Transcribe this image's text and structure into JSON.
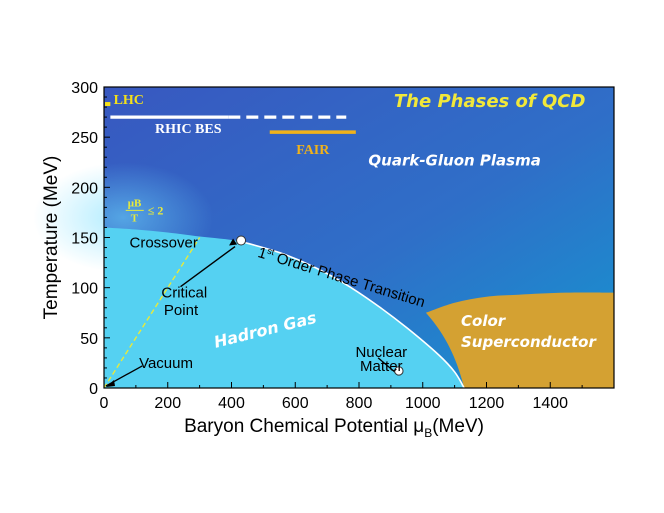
{
  "chart_data": {
    "type": "area",
    "title": "The Phases of QCD",
    "xlabel": "Baryon Chemical Potential μ",
    "xlabel_sub": "B",
    "xlabel_unit": "(MeV)",
    "ylabel": "Temperature (MeV)",
    "xlim": [
      0,
      1600
    ],
    "ylim": [
      0,
      300
    ],
    "x_ticks": [
      0,
      200,
      400,
      600,
      800,
      1000,
      1200,
      1400
    ],
    "y_ticks": [
      0,
      50,
      100,
      150,
      200,
      250,
      300
    ],
    "regions": {
      "qgp": "Quark-Gluon Plasma",
      "hadron": "Hadron Gas",
      "color_line1": "Color",
      "color_line2": "Superconductor"
    },
    "phase_boundary": {
      "label_sup": "st",
      "label_pre": "1",
      "label_post": " Order Phase Transition",
      "points": [
        [
          0,
          160
        ],
        [
          100,
          158
        ],
        [
          200,
          155
        ],
        [
          300,
          151
        ],
        [
          430,
          146
        ],
        [
          550,
          135
        ],
        [
          650,
          122
        ],
        [
          750,
          105
        ],
        [
          850,
          84
        ],
        [
          950,
          60
        ],
        [
          1050,
          33
        ],
        [
          1100,
          16
        ],
        [
          1130,
          0
        ]
      ]
    },
    "color_superconductor_boundary": [
      [
        1010,
        75
      ],
      [
        1100,
        85
      ],
      [
        1200,
        91
      ],
      [
        1300,
        93
      ],
      [
        1450,
        95
      ],
      [
        1600,
        95
      ]
    ],
    "crossover_line": {
      "label_num": "μB",
      "label_den": "T",
      "label_op": "≤ 2",
      "points": [
        [
          0,
          0
        ],
        [
          300,
          150
        ]
      ]
    },
    "annotations": {
      "crossover": "Crossover",
      "critical_line1": "Critical",
      "critical_line2": "Point",
      "critical_point": [
        430,
        147
      ],
      "vacuum": "Vacuum",
      "nuclear_line1": "Nuclear",
      "nuclear_line2": "Matter",
      "nuclear_matter": [
        925,
        17
      ]
    },
    "experiments": [
      {
        "name": "LHC",
        "mu_range": [
          0,
          20
        ],
        "T": 285,
        "color": "#f5e11a"
      },
      {
        "name": "RHIC BES",
        "mu_range": [
          20,
          760
        ],
        "solid_until": 390,
        "T": 270,
        "color": "#ffffff"
      },
      {
        "name": "FAIR",
        "mu_range": [
          520,
          790
        ],
        "T": 255,
        "color": "#f0b21b"
      }
    ],
    "colors": {
      "qgp_dark": "#3b5fc2",
      "qgp_light": "#1f8fd0",
      "hadron": "#55d1f2",
      "superconductor": "#d4a132",
      "title": "#f1e83a",
      "crossover": "#e8ea3a"
    }
  }
}
